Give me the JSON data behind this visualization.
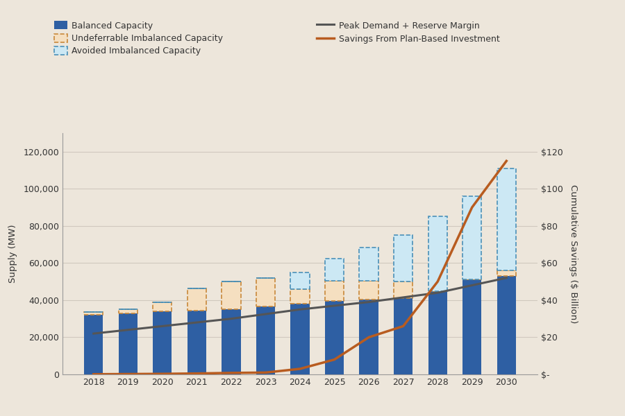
{
  "years": [
    2018,
    2019,
    2020,
    2021,
    2022,
    2023,
    2024,
    2025,
    2026,
    2027,
    2028,
    2029,
    2030
  ],
  "balanced_capacity": [
    32000,
    33000,
    34000,
    34500,
    35000,
    36500,
    38000,
    39500,
    40500,
    41000,
    45000,
    51000,
    53000
  ],
  "undeferrable_imbalanced": [
    1500,
    2000,
    5000,
    12000,
    15000,
    15500,
    8000,
    11000,
    10000,
    9000,
    0,
    0,
    3000
  ],
  "avoided_imbalanced": [
    0,
    0,
    0,
    0,
    0,
    0,
    9000,
    12000,
    18000,
    25000,
    40000,
    45000,
    55000
  ],
  "peak_demand": [
    22000,
    24000,
    26000,
    28000,
    30000,
    32500,
    35000,
    37000,
    39000,
    41500,
    44000,
    48000,
    52000
  ],
  "savings_billion": [
    0.1,
    0.2,
    0.3,
    0.5,
    0.8,
    1.0,
    3.0,
    8.0,
    20.0,
    26.0,
    50.0,
    90.0,
    115.0
  ],
  "background_color": "#ede6db",
  "bar_color_balanced": "#2e5fa3",
  "bar_color_undeferrable_fill": "#f5dfc0",
  "bar_color_undeferrable_edge": "#c8883a",
  "bar_color_avoided_fill": "#cce8f4",
  "bar_color_avoided_edge": "#4a90b8",
  "line_color_peak": "#555555",
  "line_color_savings": "#b85c20",
  "ylabel_left": "Supply (MW)",
  "ylabel_right": "Cumulative Savings ($ Billion)",
  "legend_balanced": "Balanced Capacity",
  "legend_undeferrable": "Undeferrable Imbalanced Capacity",
  "legend_avoided": "Avoided Imbalanced Capacity",
  "legend_peak": "Peak Demand + Reserve Margin",
  "legend_savings": "Savings From Plan-Based Investment",
  "yticks_left": [
    0,
    20000,
    40000,
    60000,
    80000,
    100000,
    120000
  ],
  "yticks_right": [
    0,
    20,
    40,
    60,
    80,
    100,
    120
  ],
  "ylim_left": [
    0,
    130000
  ],
  "ylim_right": [
    0,
    130
  ],
  "grid_color": "#d0c8be"
}
